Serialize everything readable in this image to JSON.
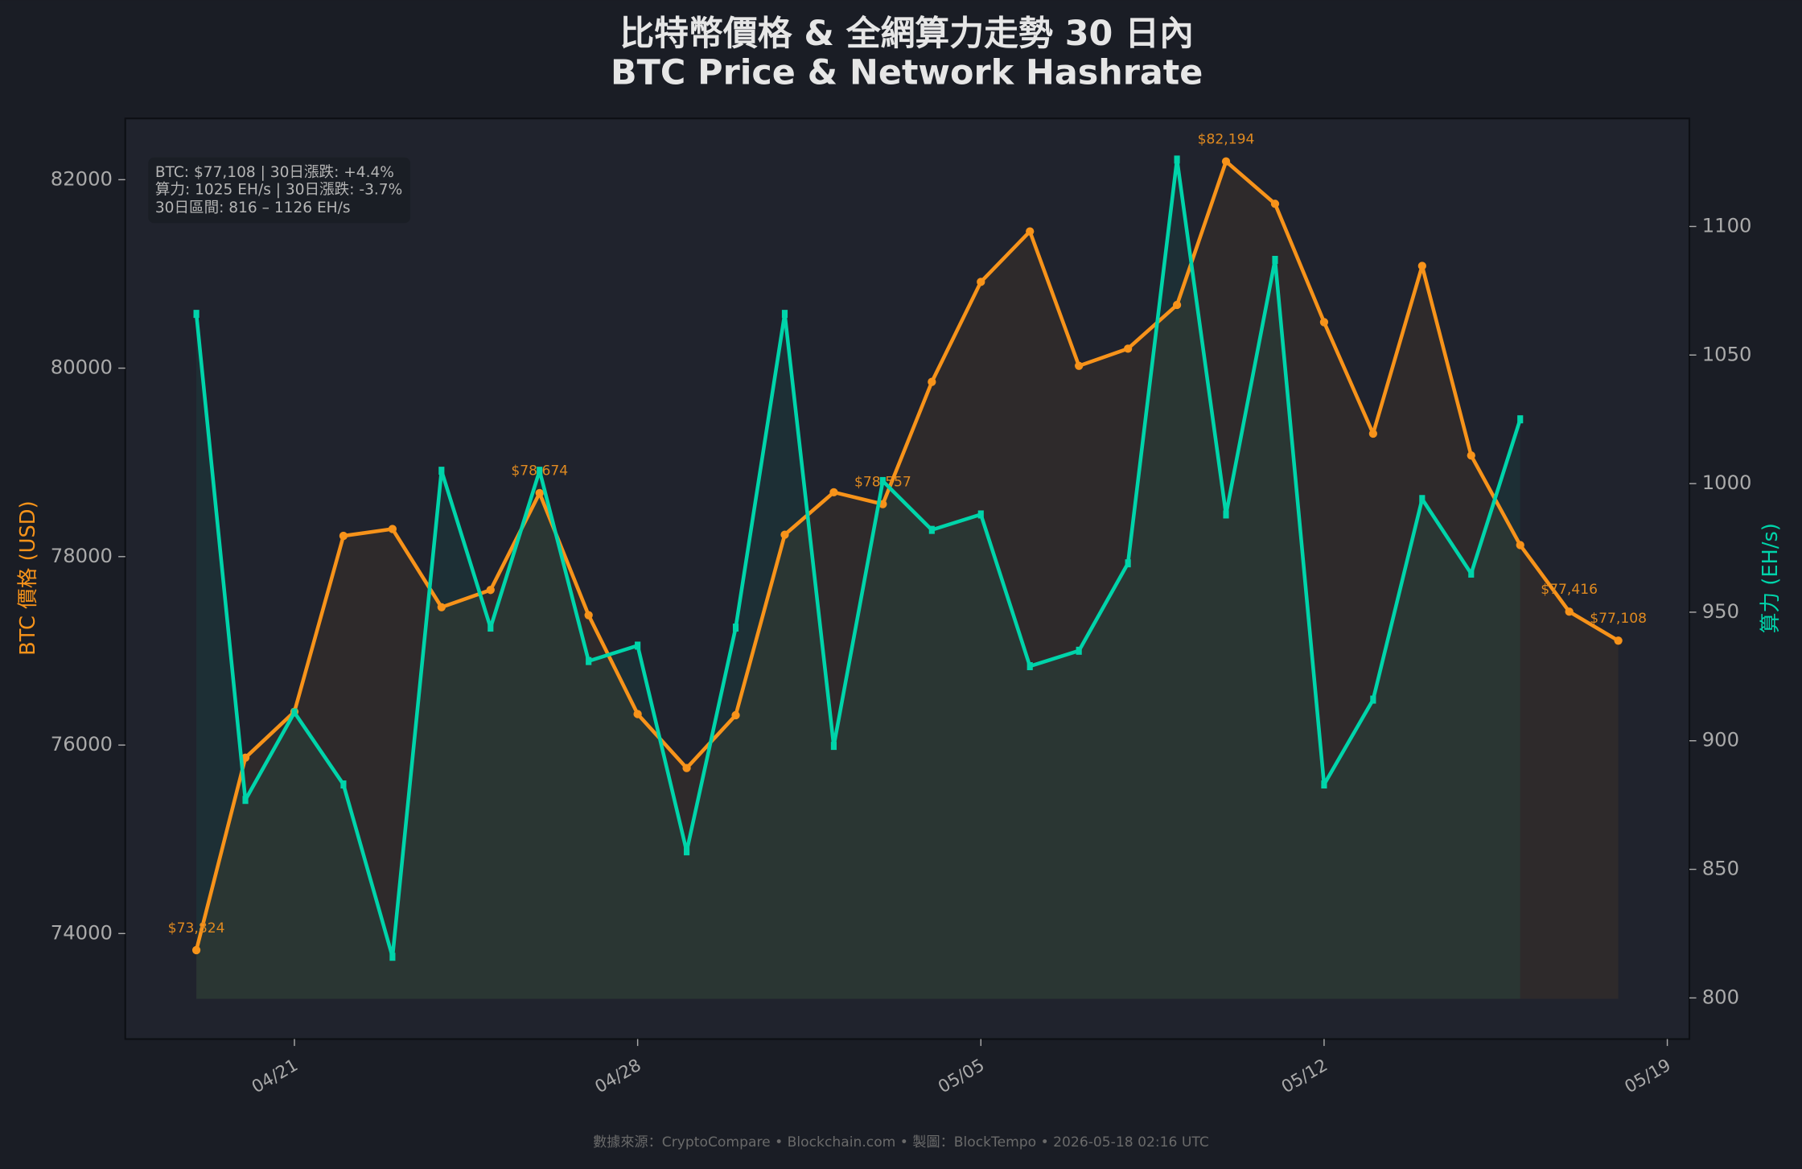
{
  "chart_data": {
    "type": "line",
    "title": "比特幣價格 & 全網算力走勢 30 日內",
    "subtitle": "BTC Price & Network Hashrate",
    "annotation": [
      "BTC: $77,108  |  30日漲跌: +4.4%",
      "算力: 1025 EH/s  |  30日漲跌: -3.7%",
      "30日區間: 816 – 1126 EH/s"
    ],
    "footer": "數據來源：CryptoCompare  •  Blockchain.com  •  製圖：BlockTempo  •  2026-05-18 02:16 UTC",
    "ylabel": "BTC 價格 (USD)",
    "y2label": "算力 (EH/s)",
    "x": [
      "04/19",
      "04/20",
      "04/21",
      "04/22",
      "04/23",
      "04/24",
      "04/25",
      "04/26",
      "04/27",
      "04/28",
      "04/29",
      "04/30",
      "05/01",
      "05/02",
      "05/03",
      "05/04",
      "05/05",
      "05/06",
      "05/07",
      "05/08",
      "05/09",
      "05/10",
      "05/11",
      "05/12",
      "05/13",
      "05/14",
      "05/15",
      "05/16",
      "05/17",
      "05/18"
    ],
    "xticks": [
      "04/21",
      "04/28",
      "05/05",
      "05/12",
      "05/19"
    ],
    "ylim": [
      72880,
      82650
    ],
    "yticks": [
      74000,
      76000,
      78000,
      80000,
      82000
    ],
    "y2lim": [
      784,
      1142
    ],
    "y2ticks": [
      800,
      850,
      900,
      950,
      1000,
      1050,
      1100
    ],
    "series": [
      {
        "color": "#f7931a",
        "values": [
          73824,
          75866,
          76354,
          78220,
          78293,
          77463,
          77646,
          78674,
          77378,
          76329,
          75756,
          76317,
          78232,
          78683,
          78557,
          79854,
          80915,
          81451,
          80024,
          80207,
          80671,
          82194,
          81744,
          80488,
          79305,
          81085,
          79073,
          78122,
          77416,
          77108
        ],
        "value_labels": [
          "$73,824",
          null,
          null,
          null,
          null,
          null,
          null,
          "$78,674",
          null,
          null,
          null,
          null,
          null,
          null,
          "$78,557",
          null,
          null,
          null,
          null,
          null,
          null,
          "$82,194",
          null,
          null,
          null,
          null,
          null,
          null,
          "$77,416",
          "$77,108"
        ]
      },
      {
        "color": "#00d4aa",
        "axis": "y2",
        "values": [
          1066,
          877,
          911,
          883,
          816,
          1005,
          944,
          1005,
          931,
          937,
          857,
          944,
          1066,
          898,
          1001,
          982,
          988,
          929,
          935,
          969,
          1126,
          988,
          1087,
          883,
          916,
          994,
          965,
          1025,
          null,
          null
        ]
      }
    ]
  }
}
